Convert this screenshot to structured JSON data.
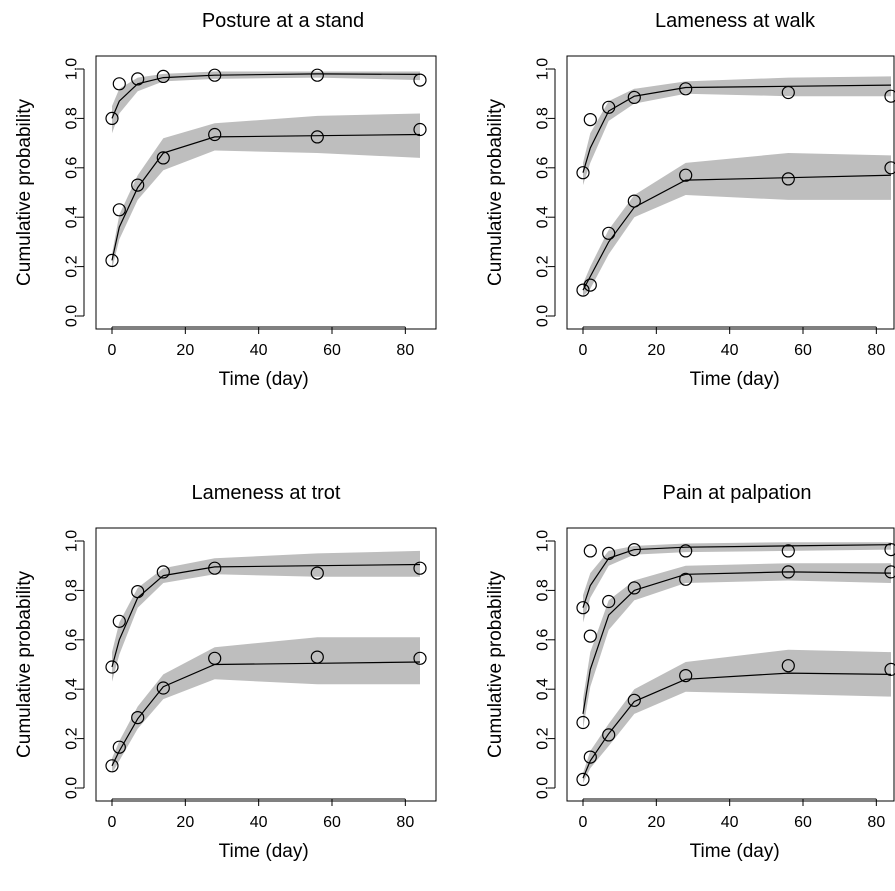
{
  "axis_labels": {
    "x": "Time (day)",
    "y": "Cumulative probability"
  },
  "chart_data": [
    {
      "type": "line",
      "title": "Posture at a stand",
      "xlabel": "Time (day)",
      "ylabel": "Cumulative probability",
      "x_ticks": [
        "0",
        "20",
        "40",
        "60",
        "80"
      ],
      "y_ticks": [
        "0.0",
        "0.2",
        "0.4",
        "0.6",
        "0.8",
        "1.0"
      ],
      "xlim": [
        0,
        84
      ],
      "ylim": [
        0,
        1
      ],
      "x": [
        0,
        2,
        7,
        14,
        28,
        56,
        84
      ],
      "series": [
        {
          "observed": [
            0.8,
            0.94,
            0.96,
            0.97,
            0.975,
            0.975,
            0.955
          ],
          "predicted": [
            0.8,
            0.87,
            0.94,
            0.965,
            0.975,
            0.98,
            0.978
          ],
          "lower": [
            0.74,
            0.82,
            0.91,
            0.95,
            0.96,
            0.965,
            0.955
          ],
          "upper": [
            0.85,
            0.92,
            0.965,
            0.98,
            0.99,
            0.99,
            0.99
          ]
        },
        {
          "observed": [
            0.225,
            0.43,
            0.53,
            0.64,
            0.735,
            0.725,
            0.755
          ],
          "predicted": [
            0.225,
            0.36,
            0.52,
            0.66,
            0.725,
            0.73,
            0.735
          ],
          "lower": [
            0.19,
            0.31,
            0.47,
            0.59,
            0.67,
            0.66,
            0.64
          ],
          "upper": [
            0.25,
            0.41,
            0.57,
            0.72,
            0.78,
            0.81,
            0.82
          ]
        }
      ]
    },
    {
      "type": "line",
      "title": "Lameness at walk",
      "xlabel": "Time (day)",
      "ylabel": "Cumulative probability",
      "x_ticks": [
        "0",
        "20",
        "40",
        "60",
        "80"
      ],
      "y_ticks": [
        "0.0",
        "0.2",
        "0.4",
        "0.6",
        "0.8",
        "1.0"
      ],
      "xlim": [
        0,
        84
      ],
      "ylim": [
        0,
        1
      ],
      "x": [
        0,
        2,
        7,
        14,
        28,
        56,
        84
      ],
      "series": [
        {
          "observed": [
            0.58,
            0.795,
            0.845,
            0.885,
            0.92,
            0.905,
            0.89
          ],
          "predicted": [
            0.58,
            0.68,
            0.83,
            0.89,
            0.925,
            0.93,
            0.935
          ],
          "lower": [
            0.53,
            0.62,
            0.79,
            0.86,
            0.9,
            0.89,
            0.89
          ],
          "upper": [
            0.62,
            0.74,
            0.87,
            0.92,
            0.95,
            0.965,
            0.97
          ]
        },
        {
          "observed": [
            0.105,
            0.125,
            0.335,
            0.465,
            0.57,
            0.555,
            0.6
          ],
          "predicted": [
            0.105,
            0.16,
            0.3,
            0.44,
            0.55,
            0.56,
            0.57
          ],
          "lower": [
            0.08,
            0.11,
            0.25,
            0.4,
            0.49,
            0.47,
            0.47
          ],
          "upper": [
            0.13,
            0.2,
            0.35,
            0.49,
            0.62,
            0.66,
            0.65
          ]
        }
      ]
    },
    {
      "type": "line",
      "title": "Lameness at trot",
      "xlabel": "Time (day)",
      "ylabel": "Cumulative probability",
      "x_ticks": [
        "0",
        "20",
        "40",
        "60",
        "80"
      ],
      "y_ticks": [
        "0.0",
        "0.2",
        "0.4",
        "0.6",
        "0.8",
        "1.0"
      ],
      "xlim": [
        0,
        84
      ],
      "ylim": [
        0,
        1
      ],
      "x": [
        0,
        2,
        7,
        14,
        28,
        56,
        84
      ],
      "series": [
        {
          "observed": [
            0.49,
            0.675,
            0.795,
            0.875,
            0.89,
            0.87,
            0.89
          ],
          "predicted": [
            0.49,
            0.6,
            0.77,
            0.86,
            0.895,
            0.9,
            0.905
          ],
          "lower": [
            0.43,
            0.54,
            0.73,
            0.83,
            0.865,
            0.855,
            0.855
          ],
          "upper": [
            0.55,
            0.67,
            0.81,
            0.89,
            0.93,
            0.95,
            0.96
          ]
        },
        {
          "observed": [
            0.09,
            0.165,
            0.285,
            0.405,
            0.525,
            0.53,
            0.525
          ],
          "predicted": [
            0.09,
            0.15,
            0.28,
            0.41,
            0.5,
            0.505,
            0.51
          ],
          "lower": [
            0.06,
            0.11,
            0.24,
            0.36,
            0.44,
            0.42,
            0.42
          ],
          "upper": [
            0.12,
            0.19,
            0.33,
            0.46,
            0.57,
            0.61,
            0.61
          ]
        }
      ]
    },
    {
      "type": "line",
      "title": "Pain at palpation",
      "xlabel": "Time (day)",
      "ylabel": "Cumulative probability",
      "x_ticks": [
        "0",
        "20",
        "40",
        "60",
        "80"
      ],
      "y_ticks": [
        "0.0",
        "0.2",
        "0.4",
        "0.6",
        "0.8",
        "1.0"
      ],
      "xlim": [
        0,
        84
      ],
      "ylim": [
        0,
        1
      ],
      "x": [
        0,
        2,
        7,
        14,
        28,
        56,
        84
      ],
      "series": [
        {
          "observed": [
            0.73,
            0.96,
            0.95,
            0.965,
            0.96,
            0.96,
            0.965
          ],
          "predicted": [
            0.73,
            0.82,
            0.93,
            0.965,
            0.975,
            0.98,
            0.985
          ],
          "lower": [
            0.67,
            0.77,
            0.9,
            0.945,
            0.955,
            0.96,
            0.965
          ],
          "upper": [
            0.78,
            0.87,
            0.96,
            0.98,
            0.99,
            0.995,
            0.995
          ]
        },
        {
          "observed": [
            0.265,
            0.615,
            0.755,
            0.81,
            0.845,
            0.875,
            0.875
          ],
          "predicted": [
            0.3,
            0.48,
            0.7,
            0.8,
            0.865,
            0.875,
            0.87
          ],
          "lower": [
            0.24,
            0.41,
            0.64,
            0.76,
            0.83,
            0.84,
            0.83
          ],
          "upper": [
            0.36,
            0.55,
            0.76,
            0.84,
            0.9,
            0.91,
            0.91
          ]
        },
        {
          "observed": [
            0.035,
            0.125,
            0.215,
            0.355,
            0.455,
            0.495,
            0.48
          ],
          "predicted": [
            0.04,
            0.11,
            0.22,
            0.35,
            0.44,
            0.465,
            0.46
          ],
          "lower": [
            0.02,
            0.08,
            0.17,
            0.3,
            0.39,
            0.38,
            0.37
          ],
          "upper": [
            0.06,
            0.15,
            0.26,
            0.4,
            0.51,
            0.56,
            0.55
          ]
        }
      ]
    }
  ]
}
